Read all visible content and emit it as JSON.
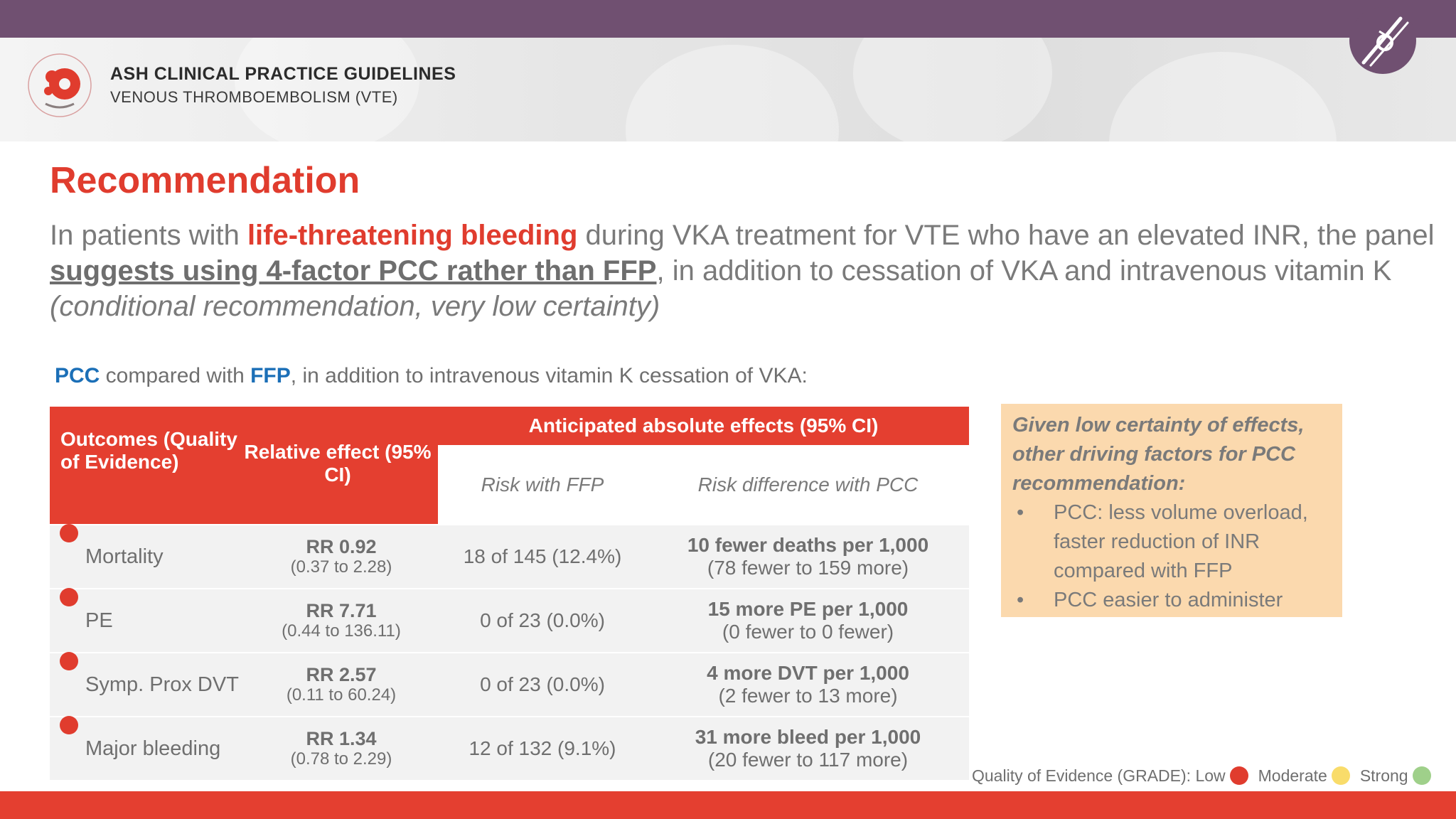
{
  "header": {
    "title": "ASH CLINICAL PRACTICE GUIDELINES",
    "subtitle": "VENOUS THROMBOEMBOLISM (VTE)",
    "logo_name": "American Society of Hematology logo",
    "badge_icon": "blood-vessel-icon"
  },
  "recommendation": {
    "title": "Recommendation",
    "p1": "In patients with ",
    "p2": "life-threatening bleeding",
    "p3": " during VKA treatment for VTE who have an elevated INR, the panel ",
    "p4": "suggests using 4-factor PCC rather than FFP",
    "p5": ", in addition to cessation of VKA and intravenous vitamin K ",
    "p6": "(conditional recommendation, very low certainty)"
  },
  "comparison": {
    "a": "PCC",
    "mid": " compared with ",
    "b": "FFP",
    "rest": ", in addition to intravenous vitamin K cessation of VKA:"
  },
  "table": {
    "headers": {
      "outcomes": "Outcomes (Quality of Evidence)",
      "relative": "Relative effect (95% CI)",
      "anticipated": "Anticipated absolute effects (95% CI)",
      "risk_ffp": "Risk with FFP",
      "risk_diff": "Risk difference with PCC"
    },
    "rows": [
      {
        "outcome": "Mortality",
        "rr": "RR 0.92",
        "ci": "(0.37 to 2.28)",
        "ffp": "18 of 145 (12.4%)",
        "diff": "10 fewer deaths per 1,000",
        "range": "(78 fewer to 159 more)"
      },
      {
        "outcome": "PE",
        "rr": "RR 7.71",
        "ci": "(0.44 to 136.11)",
        "ffp": "0 of 23 (0.0%)",
        "diff": "15 more PE per 1,000",
        "range": "(0 fewer to 0 fewer)"
      },
      {
        "outcome": "Symp. Prox DVT",
        "rr": "RR 2.57",
        "ci": "(0.11 to 60.24)",
        "ffp": "0 of 23 (0.0%)",
        "diff": "4 more DVT per 1,000",
        "range": "(2 fewer to 13 more)"
      },
      {
        "outcome": "Major bleeding",
        "rr": "RR 1.34",
        "ci": "(0.78 to 2.29)",
        "ffp": "12 of 132 (9.1%)",
        "diff": "31 more bleed per 1,000",
        "range": "(20 fewer to 117 more)"
      }
    ]
  },
  "note": {
    "title": "Given low certainty of effects, other driving factors for PCC recommendation:",
    "bullets": [
      "PCC: less volume overload, faster reduction of INR compared with FFP",
      "PCC easier to administer"
    ]
  },
  "legend": {
    "label": "Quality of Evidence (GRADE): Low",
    "moderate": "Moderate",
    "strong": "Strong",
    "colors": {
      "low": "#e03c2e",
      "moderate": "#f9dc6a",
      "strong": "#9fd08a"
    }
  }
}
